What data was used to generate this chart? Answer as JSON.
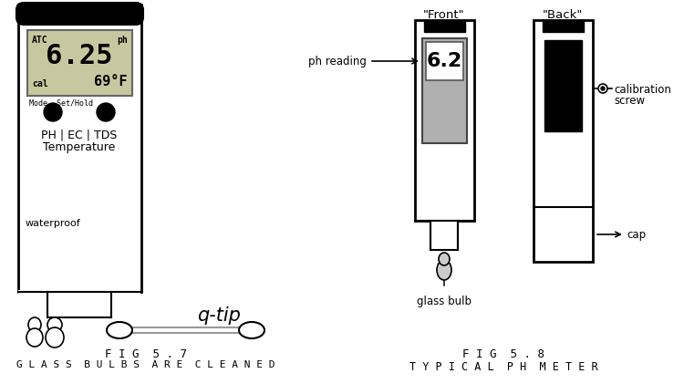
{
  "bg_color": "#ffffff",
  "fig57_caption1": "F I G  5 . 7",
  "fig57_caption2": "G L A S S  B U L B S  A R E  C L E A N E D",
  "fig58_caption1": "F I G  5 . 8",
  "fig58_caption2": "T Y P I C A L  P H  M E T E R",
  "front_label": "\"Front\"",
  "back_label": "\"Back\"",
  "ph_reading_label": "ph reading",
  "ph_value": "6.2",
  "calibration_label1": "calibration",
  "calibration_label2": "screw",
  "glass_bulb_label": "glass bulb",
  "cap_label": "cap",
  "qtip_label": "q-tip",
  "waterproof_label": "waterproof",
  "ph_line1": "PH | EC | TDS",
  "ph_line2": "Temperature",
  "atc_text": "ATC",
  "ph_label_lcd": "ph",
  "big_ph": "6.25",
  "cal_text": "cal",
  "temp_text": "69°F",
  "mode_text": "Mode  Set/Hold"
}
